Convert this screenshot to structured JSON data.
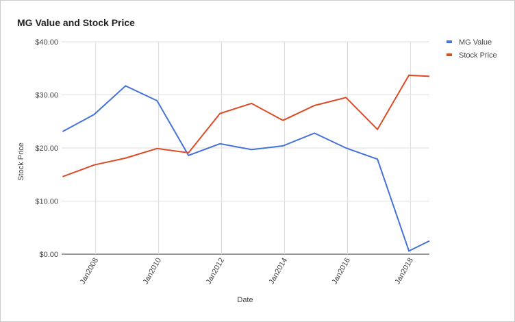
{
  "chart_data": {
    "type": "line",
    "title": "MG Value and Stock Price",
    "x_label": "Date",
    "y_label": "Stock Price",
    "x": [
      2006.95,
      2007.95,
      2008.95,
      2009.95,
      2010.95,
      2011.95,
      2012.95,
      2013.95,
      2014.95,
      2015.95,
      2016.95,
      2017.95,
      2018.6
    ],
    "series": [
      {
        "name": "MG Value",
        "color": "#4472d8",
        "values": [
          23.1,
          26.3,
          31.7,
          28.9,
          18.6,
          20.8,
          19.7,
          20.4,
          22.8,
          20.0,
          17.9,
          0.6,
          2.5
        ]
      },
      {
        "name": "Stock Price",
        "color": "#dc4a26",
        "values": [
          14.6,
          16.8,
          18.1,
          19.9,
          19.1,
          26.5,
          28.4,
          25.2,
          28.0,
          29.5,
          23.5,
          33.7,
          33.5
        ]
      }
    ],
    "xlim": [
      2006.92,
      2018.6
    ],
    "xticks": [
      {
        "value": 2008,
        "label": "Jan2008"
      },
      {
        "value": 2010,
        "label": "Jan2010"
      },
      {
        "value": 2012,
        "label": "Jan2012"
      },
      {
        "value": 2014,
        "label": "Jan2014"
      },
      {
        "value": 2016,
        "label": "Jan2016"
      },
      {
        "value": 2018,
        "label": "Jan2018"
      }
    ],
    "ylim": [
      0,
      40
    ],
    "yticks": [
      {
        "value": 0,
        "label": "$0.00"
      },
      {
        "value": 10,
        "label": "$10.00"
      },
      {
        "value": 20,
        "label": "$20.00"
      },
      {
        "value": 30,
        "label": "$30.00"
      },
      {
        "value": 40,
        "label": "$40.00"
      }
    ],
    "grid": true,
    "legend": "right"
  }
}
